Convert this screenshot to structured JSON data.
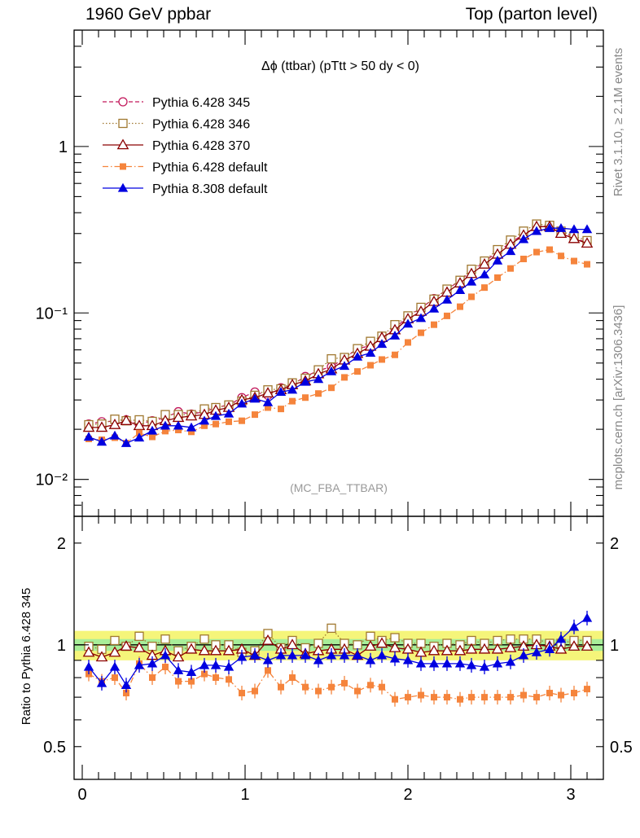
{
  "header": {
    "left": "1960 GeV ppbar",
    "right": "Top (parton level)"
  },
  "side_labels": {
    "rivet": "Rivet 3.1.10, ≥ 2.1M events",
    "mcplots": "mcplots.cern.ch [arXiv:1306.3436]"
  },
  "chart_data": [
    {
      "type": "line",
      "title": "Δϕ (ttbar) (pTtt > 50 dy < 0)",
      "watermark": "(MC_FBA_TTBAR)",
      "xlabel": "",
      "ylabel": "",
      "xlim": [
        -0.05,
        3.2
      ],
      "ylim": [
        0.006,
        5
      ],
      "yscale": "log",
      "y_ticks": [
        {
          "value": 0.01,
          "label": "10⁻²"
        },
        {
          "value": 0.1,
          "label": "10⁻¹"
        },
        {
          "value": 1,
          "label": "1"
        }
      ],
      "x_ticks": [
        0,
        1,
        2,
        3
      ],
      "legend_position": "top-left",
      "x": [
        0.04,
        0.12,
        0.2,
        0.27,
        0.35,
        0.43,
        0.51,
        0.59,
        0.67,
        0.75,
        0.82,
        0.9,
        0.98,
        1.06,
        1.14,
        1.22,
        1.29,
        1.37,
        1.45,
        1.53,
        1.61,
        1.69,
        1.77,
        1.84,
        1.92,
        2.0,
        2.08,
        2.16,
        2.24,
        2.32,
        2.39,
        2.47,
        2.55,
        2.63,
        2.71,
        2.79,
        2.87,
        2.94,
        3.02,
        3.1
      ],
      "series": [
        {
          "name": "Pythia 6.428 345",
          "color": "#c2185b",
          "marker": "circle-open",
          "line": "dashed",
          "values": [
            0.0215,
            0.0222,
            0.0224,
            0.0228,
            0.0215,
            0.0225,
            0.0235,
            0.0255,
            0.0247,
            0.0255,
            0.027,
            0.028,
            0.031,
            0.0335,
            0.032,
            0.0355,
            0.037,
            0.0415,
            0.045,
            0.0475,
            0.0535,
            0.061,
            0.0635,
            0.07,
            0.081,
            0.095,
            0.107,
            0.122,
            0.138,
            0.157,
            0.178,
            0.203,
            0.233,
            0.264,
            0.297,
            0.33,
            0.333,
            0.308,
            0.283,
            0.264
          ]
        },
        {
          "name": "Pythia 6.428 346",
          "color": "#a07830",
          "marker": "square-open",
          "line": "dotted",
          "values": [
            0.0213,
            0.0215,
            0.023,
            0.0225,
            0.0228,
            0.0223,
            0.0245,
            0.0245,
            0.0245,
            0.0265,
            0.027,
            0.028,
            0.0295,
            0.032,
            0.0345,
            0.035,
            0.038,
            0.0405,
            0.0455,
            0.053,
            0.054,
            0.061,
            0.0675,
            0.0725,
            0.085,
            0.096,
            0.108,
            0.121,
            0.139,
            0.157,
            0.183,
            0.205,
            0.24,
            0.274,
            0.31,
            0.342,
            0.336,
            0.31,
            0.29,
            0.272
          ]
        },
        {
          "name": "Pythia 6.428 370",
          "color": "#8b0000",
          "marker": "triangle-open",
          "line": "solid",
          "values": [
            0.0205,
            0.0205,
            0.0213,
            0.0225,
            0.021,
            0.021,
            0.0225,
            0.0235,
            0.024,
            0.0245,
            0.026,
            0.027,
            0.03,
            0.031,
            0.033,
            0.0345,
            0.037,
            0.039,
            0.043,
            0.046,
            0.052,
            0.057,
            0.063,
            0.071,
            0.079,
            0.092,
            0.102,
            0.117,
            0.133,
            0.151,
            0.172,
            0.196,
            0.225,
            0.258,
            0.293,
            0.33,
            0.33,
            0.3,
            0.279,
            0.262
          ]
        },
        {
          "name": "Pythia 6.428 default",
          "color": "#f5843c",
          "marker": "square-filled",
          "line": "dashdot",
          "values": [
            0.0175,
            0.0173,
            0.0178,
            0.0165,
            0.019,
            0.018,
            0.0195,
            0.0198,
            0.0193,
            0.021,
            0.0215,
            0.0222,
            0.0225,
            0.0245,
            0.027,
            0.0265,
            0.0295,
            0.031,
            0.0328,
            0.0355,
            0.041,
            0.0445,
            0.0485,
            0.0525,
            0.056,
            0.0665,
            0.076,
            0.085,
            0.096,
            0.109,
            0.125,
            0.142,
            0.163,
            0.185,
            0.211,
            0.232,
            0.24,
            0.22,
            0.205,
            0.196
          ]
        },
        {
          "name": "Pythia 8.308 default",
          "color": "#0000e0",
          "marker": "triangle-filled",
          "line": "solid",
          "values": [
            0.018,
            0.0168,
            0.0183,
            0.0165,
            0.0178,
            0.0196,
            0.021,
            0.021,
            0.0205,
            0.0225,
            0.024,
            0.0248,
            0.0285,
            0.0305,
            0.029,
            0.0335,
            0.0345,
            0.0385,
            0.04,
            0.0445,
            0.048,
            0.0545,
            0.0575,
            0.065,
            0.073,
            0.086,
            0.093,
            0.106,
            0.12,
            0.137,
            0.154,
            0.17,
            0.206,
            0.235,
            0.277,
            0.31,
            0.323,
            0.323,
            0.318,
            0.318
          ]
        }
      ]
    },
    {
      "type": "line",
      "title": "",
      "xlabel": "",
      "ylabel": "Ratio to Pythia 6.428 345",
      "xlim": [
        -0.05,
        3.2
      ],
      "ylim": [
        0.4,
        2.4
      ],
      "yscale": "log",
      "y_ticks": [
        {
          "value": 0.5,
          "label": "0.5"
        },
        {
          "value": 1,
          "label": "1"
        },
        {
          "value": 2,
          "label": "2"
        }
      ],
      "x_ticks": [
        0,
        1,
        2,
        3
      ],
      "reference_band": {
        "inner": [
          0.96,
          1.04
        ],
        "outer": [
          0.9,
          1.1
        ]
      },
      "series": [
        {
          "name": "Pythia 6.428 346",
          "values": [
            0.99,
            0.97,
            1.03,
            0.99,
            1.06,
            0.99,
            1.04,
            0.96,
            0.99,
            1.04,
            1.0,
            1.0,
            0.95,
            0.96,
            1.08,
            0.98,
            1.03,
            0.98,
            1.01,
            1.12,
            1.01,
            1.0,
            1.06,
            1.03,
            1.05,
            1.01,
            1.01,
            0.99,
            1.01,
            1.0,
            1.03,
            1.01,
            1.03,
            1.04,
            1.04,
            1.04,
            1.01,
            1.01,
            1.03,
            1.03
          ]
        },
        {
          "name": "Pythia 6.428 370",
          "values": [
            0.95,
            0.92,
            0.95,
            0.99,
            0.98,
            0.93,
            0.96,
            0.92,
            0.97,
            0.96,
            0.96,
            0.96,
            0.97,
            0.93,
            1.03,
            0.97,
            1.0,
            0.94,
            0.96,
            0.97,
            0.97,
            0.93,
            0.99,
            1.01,
            0.98,
            0.97,
            0.95,
            0.96,
            0.96,
            0.96,
            0.97,
            0.97,
            0.97,
            0.98,
            0.99,
            1.0,
            0.99,
            0.97,
            0.99,
            0.99
          ]
        },
        {
          "name": "Pythia 6.428 default",
          "values": [
            0.82,
            0.78,
            0.8,
            0.72,
            0.88,
            0.8,
            0.86,
            0.78,
            0.78,
            0.82,
            0.8,
            0.79,
            0.72,
            0.73,
            0.84,
            0.75,
            0.8,
            0.75,
            0.73,
            0.75,
            0.77,
            0.73,
            0.76,
            0.75,
            0.69,
            0.7,
            0.71,
            0.7,
            0.7,
            0.69,
            0.7,
            0.7,
            0.7,
            0.7,
            0.71,
            0.7,
            0.72,
            0.71,
            0.72,
            0.74
          ]
        },
        {
          "name": "Pythia 8.308 default",
          "values": [
            0.86,
            0.77,
            0.86,
            0.76,
            0.87,
            0.88,
            0.93,
            0.84,
            0.83,
            0.87,
            0.87,
            0.86,
            0.92,
            0.93,
            0.9,
            0.93,
            0.93,
            0.93,
            0.9,
            0.93,
            0.93,
            0.93,
            0.9,
            0.93,
            0.91,
            0.9,
            0.88,
            0.88,
            0.88,
            0.88,
            0.87,
            0.86,
            0.88,
            0.89,
            0.93,
            0.95,
            0.97,
            1.04,
            1.13,
            1.2
          ]
        }
      ]
    }
  ]
}
